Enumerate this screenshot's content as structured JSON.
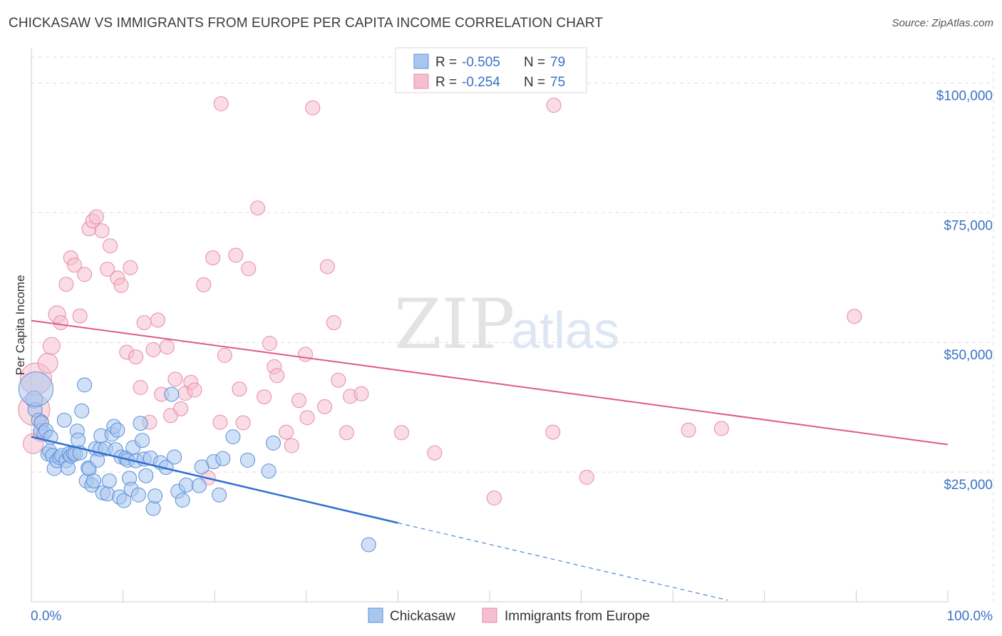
{
  "header": {
    "title": "CHICKASAW VS IMMIGRANTS FROM EUROPE PER CAPITA INCOME CORRELATION CHART",
    "source": "Source: ZipAtlas.com"
  },
  "colors": {
    "blue_fill": "#a9c7ee",
    "blue_stroke": "#5a8fd8",
    "blue_line": "#2f6fd0",
    "pink_fill": "#f6bfd0",
    "pink_stroke": "#e88aa8",
    "pink_line": "#e05a88",
    "tick_text": "#3a72c4",
    "grid": "#dddddd"
  },
  "watermark": {
    "zip": "ZIP",
    "atlas": "atlas"
  },
  "legend": {
    "rows": [
      {
        "r_label": "R = ",
        "r_value": "-0.505",
        "n_label": "N = ",
        "n_value": "79"
      },
      {
        "r_label": "R = ",
        "r_value": "-0.254",
        "n_label": "N = ",
        "n_value": "75"
      }
    ]
  },
  "bottom_legend": {
    "items": [
      "Chickasaw",
      "Immigrants from Europe"
    ]
  },
  "chart_data": {
    "type": "scatter",
    "title": "CHICKASAW VS IMMIGRANTS FROM EUROPE PER CAPITA INCOME CORRELATION CHART",
    "xlabel": "",
    "ylabel": "Per Capita Income",
    "xlim": [
      0,
      100
    ],
    "ylim": [
      0,
      105000
    ],
    "x_tick_labels": [
      "0.0%",
      "100.0%"
    ],
    "y_ticks": [
      25000,
      50000,
      75000,
      100000
    ],
    "y_tick_labels": [
      "$25,000",
      "$50,000",
      "$75,000",
      "$100,000"
    ],
    "grid": true,
    "legend_position": "top-center",
    "series": [
      {
        "name": "Chickasaw",
        "R": -0.505,
        "N": 79,
        "trend": {
          "x0": 0,
          "y0": 31800,
          "x1": 40,
          "y1": 15200,
          "dashed_to_x": 76,
          "dashed_to_y": 300
        },
        "points": [
          [
            0.3,
            39000,
            12
          ],
          [
            0.4,
            37000,
            10
          ],
          [
            0.5,
            41000,
            24
          ],
          [
            0.8,
            35000,
            10
          ],
          [
            1.0,
            33000,
            10
          ],
          [
            1.1,
            34500,
            10
          ],
          [
            1.4,
            32500,
            10
          ],
          [
            1.6,
            33000,
            10
          ],
          [
            1.8,
            28500,
            10
          ],
          [
            2.0,
            29000,
            10
          ],
          [
            2.1,
            31700,
            10
          ],
          [
            2.3,
            28200,
            10
          ],
          [
            2.5,
            25700,
            10
          ],
          [
            2.8,
            27200,
            10
          ],
          [
            3.1,
            27800,
            10
          ],
          [
            3.3,
            28200,
            10
          ],
          [
            3.6,
            35000,
            10
          ],
          [
            3.8,
            27200,
            10
          ],
          [
            4.0,
            25800,
            10
          ],
          [
            4.1,
            28500,
            10
          ],
          [
            4.3,
            28100,
            10
          ],
          [
            4.6,
            28600,
            10
          ],
          [
            4.8,
            28500,
            10
          ],
          [
            5.0,
            32900,
            10
          ],
          [
            5.1,
            31200,
            10
          ],
          [
            5.3,
            28700,
            10
          ],
          [
            5.5,
            36800,
            10
          ],
          [
            5.8,
            41800,
            10
          ],
          [
            6.0,
            23300,
            10
          ],
          [
            6.2,
            25800,
            10
          ],
          [
            6.3,
            25600,
            10
          ],
          [
            6.6,
            22500,
            10
          ],
          [
            6.8,
            23300,
            10
          ],
          [
            7.0,
            29500,
            10
          ],
          [
            7.2,
            27300,
            10
          ],
          [
            7.5,
            29400,
            10
          ],
          [
            7.6,
            32000,
            10
          ],
          [
            7.8,
            21000,
            10
          ],
          [
            8.1,
            29500,
            10
          ],
          [
            8.3,
            20800,
            10
          ],
          [
            8.5,
            23300,
            10
          ],
          [
            8.8,
            32300,
            10
          ],
          [
            9.0,
            33800,
            10
          ],
          [
            9.2,
            29300,
            10
          ],
          [
            9.4,
            33100,
            10
          ],
          [
            9.6,
            20200,
            10
          ],
          [
            9.8,
            27900,
            10
          ],
          [
            10.1,
            19500,
            10
          ],
          [
            10.3,
            27700,
            10
          ],
          [
            10.5,
            27300,
            10
          ],
          [
            10.7,
            23800,
            10
          ],
          [
            10.9,
            21700,
            10
          ],
          [
            11.1,
            29700,
            10
          ],
          [
            11.4,
            27200,
            10
          ],
          [
            11.7,
            20600,
            10
          ],
          [
            11.9,
            34400,
            10
          ],
          [
            12.1,
            31100,
            10
          ],
          [
            12.3,
            27500,
            10
          ],
          [
            12.5,
            24300,
            10
          ],
          [
            13.0,
            27700,
            10
          ],
          [
            13.3,
            18000,
            10
          ],
          [
            13.5,
            20400,
            10
          ],
          [
            14.1,
            26800,
            10
          ],
          [
            14.7,
            25900,
            10
          ],
          [
            15.3,
            40000,
            10
          ],
          [
            15.6,
            27900,
            10
          ],
          [
            16.0,
            21300,
            10
          ],
          [
            16.5,
            19600,
            10
          ],
          [
            16.9,
            22500,
            10
          ],
          [
            18.3,
            22400,
            10
          ],
          [
            18.6,
            26000,
            10
          ],
          [
            19.9,
            27000,
            10
          ],
          [
            20.5,
            20600,
            10
          ],
          [
            20.9,
            27600,
            10
          ],
          [
            22.0,
            31800,
            10
          ],
          [
            23.6,
            27300,
            10
          ],
          [
            25.9,
            25200,
            10
          ],
          [
            26.4,
            30600,
            10
          ],
          [
            36.8,
            11000,
            10
          ]
        ]
      },
      {
        "name": "Immigrants from Europe",
        "R": -0.254,
        "N": 75,
        "trend": {
          "x0": 0,
          "y0": 54200,
          "x1": 100,
          "y1": 30300
        },
        "points": [
          [
            0.2,
            30500,
            14
          ],
          [
            0.3,
            37000,
            22
          ],
          [
            0.5,
            43000,
            22
          ],
          [
            1.0,
            32300,
            10
          ],
          [
            1.1,
            34700,
            10
          ],
          [
            1.8,
            46000,
            14
          ],
          [
            2.2,
            49300,
            12
          ],
          [
            2.8,
            55400,
            12
          ],
          [
            3.2,
            53800,
            10
          ],
          [
            3.8,
            61200,
            10
          ],
          [
            4.3,
            66300,
            10
          ],
          [
            4.7,
            64900,
            10
          ],
          [
            5.3,
            55100,
            10
          ],
          [
            5.8,
            63100,
            10
          ],
          [
            6.3,
            71900,
            10
          ],
          [
            6.7,
            73400,
            10
          ],
          [
            7.1,
            74200,
            10
          ],
          [
            7.7,
            71500,
            10
          ],
          [
            8.3,
            64100,
            10
          ],
          [
            8.6,
            68600,
            10
          ],
          [
            9.4,
            62400,
            10
          ],
          [
            9.8,
            61000,
            10
          ],
          [
            10.4,
            48100,
            10
          ],
          [
            10.8,
            64400,
            10
          ],
          [
            11.4,
            47200,
            10
          ],
          [
            11.9,
            41300,
            10
          ],
          [
            12.3,
            53800,
            10
          ],
          [
            12.9,
            34600,
            10
          ],
          [
            13.3,
            48600,
            10
          ],
          [
            13.8,
            54300,
            10
          ],
          [
            14.2,
            40000,
            10
          ],
          [
            14.8,
            49100,
            10
          ],
          [
            15.2,
            35900,
            10
          ],
          [
            15.7,
            42900,
            10
          ],
          [
            16.3,
            37200,
            10
          ],
          [
            16.8,
            40200,
            10
          ],
          [
            17.4,
            42300,
            10
          ],
          [
            17.8,
            40800,
            10
          ],
          [
            18.8,
            61100,
            10
          ],
          [
            19.3,
            23900,
            10
          ],
          [
            19.8,
            66300,
            10
          ],
          [
            20.6,
            34600,
            10
          ],
          [
            20.7,
            96000,
            10
          ],
          [
            21.1,
            47500,
            10
          ],
          [
            22.3,
            66800,
            10
          ],
          [
            22.7,
            41000,
            10
          ],
          [
            23.1,
            34500,
            10
          ],
          [
            23.7,
            64200,
            10
          ],
          [
            24.7,
            75900,
            10
          ],
          [
            25.4,
            39500,
            10
          ],
          [
            26.0,
            49800,
            10
          ],
          [
            26.5,
            45300,
            10
          ],
          [
            26.8,
            43600,
            10
          ],
          [
            27.8,
            32700,
            10
          ],
          [
            28.4,
            30100,
            10
          ],
          [
            29.2,
            38800,
            10
          ],
          [
            29.9,
            47700,
            10
          ],
          [
            30.1,
            35500,
            10
          ],
          [
            30.7,
            95200,
            10
          ],
          [
            32.0,
            37600,
            10
          ],
          [
            32.3,
            64600,
            10
          ],
          [
            33.0,
            53800,
            10
          ],
          [
            33.5,
            42700,
            10
          ],
          [
            34.4,
            32600,
            10
          ],
          [
            34.8,
            39600,
            10
          ],
          [
            36.0,
            40100,
            10
          ],
          [
            40.4,
            32600,
            10
          ],
          [
            44.0,
            28700,
            10
          ],
          [
            50.5,
            20000,
            10
          ],
          [
            56.9,
            32700,
            10
          ],
          [
            60.6,
            24000,
            10
          ],
          [
            71.7,
            33100,
            10
          ],
          [
            75.3,
            33400,
            10
          ],
          [
            89.8,
            55000,
            10
          ],
          [
            57.0,
            95700,
            10
          ]
        ]
      }
    ]
  }
}
